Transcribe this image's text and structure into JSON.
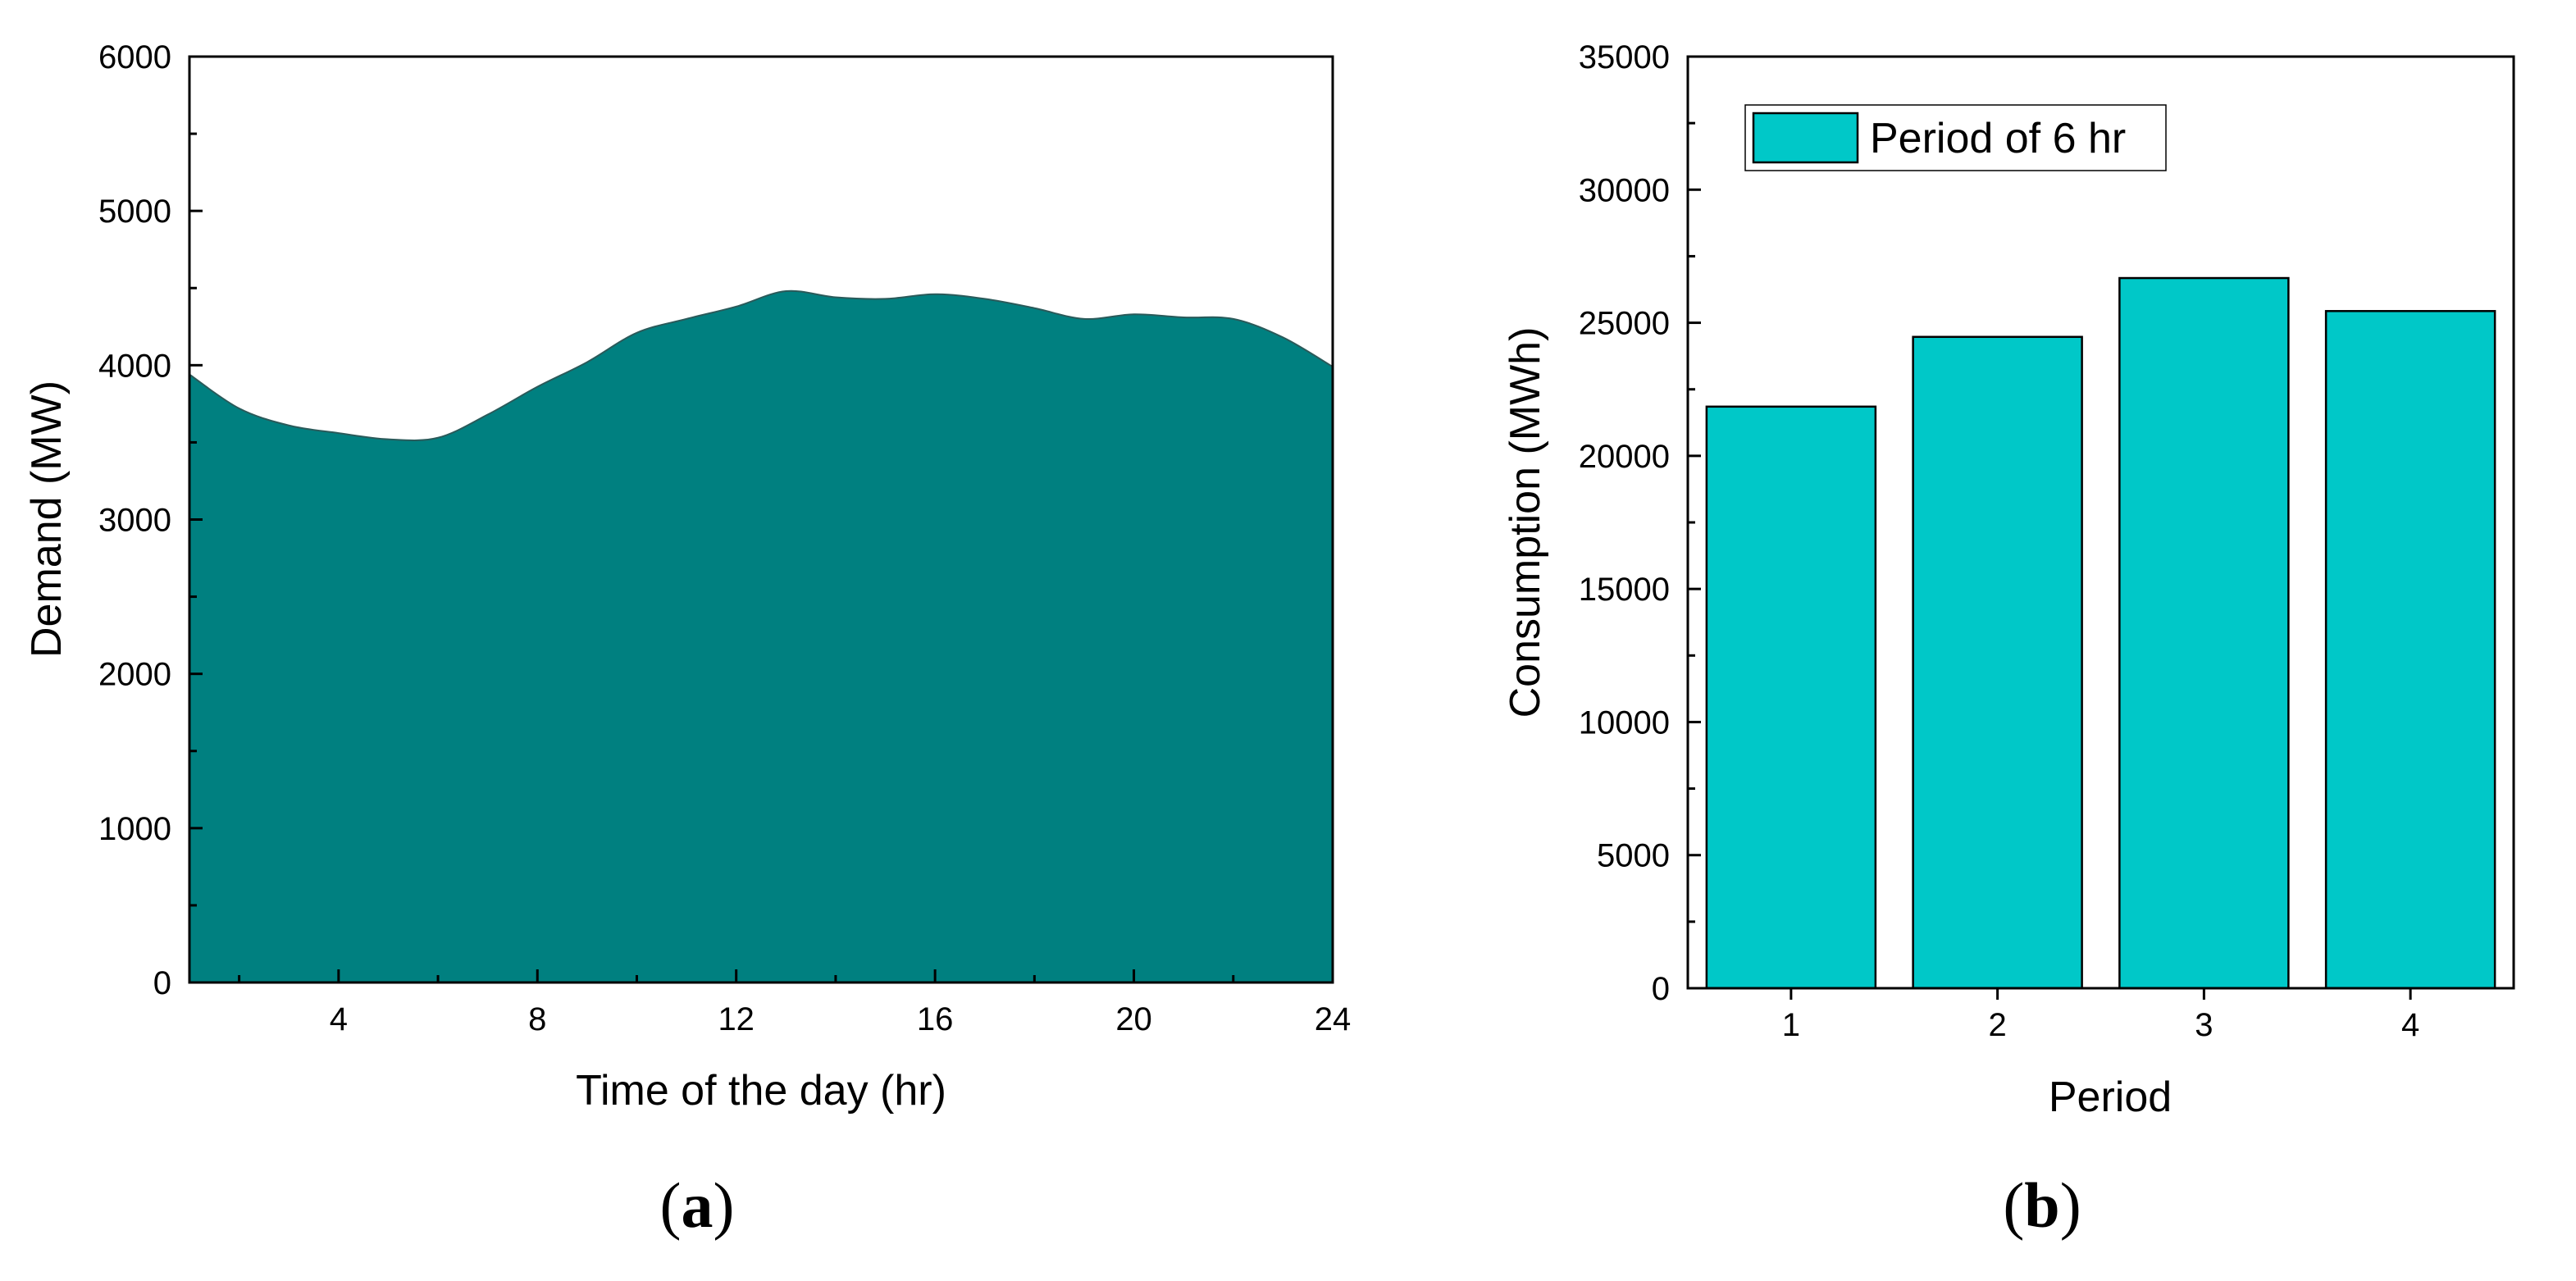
{
  "panels": [
    {
      "label_open": "(",
      "label_letter": "a",
      "label_close": ")"
    },
    {
      "label_open": "(",
      "label_letter": "b",
      "label_close": ")"
    }
  ],
  "chart_data": [
    {
      "type": "area",
      "xlabel": "Time of the day (hr)",
      "ylabel": "Demand (MW)",
      "xlim": [
        1,
        24
      ],
      "ylim": [
        0,
        6000
      ],
      "x_ticks": [
        4,
        8,
        12,
        16,
        20,
        24
      ],
      "y_ticks": [
        0,
        1000,
        2000,
        3000,
        4000,
        5000,
        6000
      ],
      "x": [
        1,
        2,
        3,
        4,
        5,
        6,
        7,
        8,
        9,
        10,
        11,
        12,
        13,
        14,
        15,
        16,
        17,
        18,
        19,
        20,
        21,
        22,
        23,
        24
      ],
      "values": [
        3940,
        3720,
        3610,
        3560,
        3520,
        3530,
        3680,
        3860,
        4020,
        4210,
        4300,
        4380,
        4480,
        4440,
        4430,
        4460,
        4430,
        4370,
        4300,
        4330,
        4310,
        4300,
        4180,
        3990
      ],
      "fill_color": "#008080"
    },
    {
      "type": "bar",
      "xlabel": "Period",
      "ylabel": "Consumption (MWh)",
      "categories": [
        "1",
        "2",
        "3",
        "4"
      ],
      "ylim": [
        0,
        35000
      ],
      "y_ticks": [
        0,
        5000,
        10000,
        15000,
        20000,
        25000,
        30000,
        35000
      ],
      "series": [
        {
          "name": "Period of 6 hr",
          "values": [
            21850,
            24470,
            26680,
            25440
          ]
        }
      ],
      "legend": "top-left",
      "bar_color": "#00C8C8"
    }
  ]
}
